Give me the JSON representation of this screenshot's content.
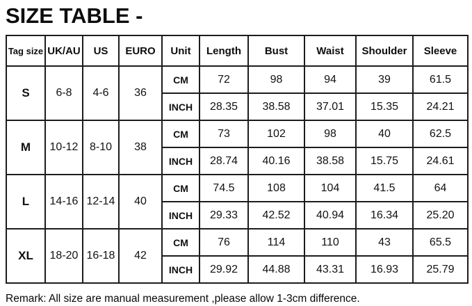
{
  "title": "SIZE TABLE -",
  "remark": "Remark: All size are manual measurement ,please allow 1-3cm difference.",
  "colors": {
    "background": "#ffffff",
    "text": "#0d0d0d",
    "border": "#1c1c1c"
  },
  "table": {
    "headers": [
      "Tag size",
      "UK/AU",
      "US",
      "EURO",
      "Unit",
      "Length",
      "Bust",
      "Waist",
      "Shoulder",
      "Sleeve"
    ],
    "unit_labels": [
      "CM",
      "INCH"
    ],
    "rows": [
      {
        "tag": "S",
        "uk_au": "6-8",
        "us": "4-6",
        "euro": "36",
        "cm": [
          "72",
          "98",
          "94",
          "39",
          "61.5"
        ],
        "inch": [
          "28.35",
          "38.58",
          "37.01",
          "15.35",
          "24.21"
        ]
      },
      {
        "tag": "M",
        "uk_au": "10-12",
        "us": "8-10",
        "euro": "38",
        "cm": [
          "73",
          "102",
          "98",
          "40",
          "62.5"
        ],
        "inch": [
          "28.74",
          "40.16",
          "38.58",
          "15.75",
          "24.61"
        ]
      },
      {
        "tag": "L",
        "uk_au": "14-16",
        "us": "12-14",
        "euro": "40",
        "cm": [
          "74.5",
          "108",
          "104",
          "41.5",
          "64"
        ],
        "inch": [
          "29.33",
          "42.52",
          "40.94",
          "16.34",
          "25.20"
        ]
      },
      {
        "tag": "XL",
        "uk_au": "18-20",
        "us": "16-18",
        "euro": "42",
        "cm": [
          "76",
          "114",
          "110",
          "43",
          "65.5"
        ],
        "inch": [
          "29.92",
          "44.88",
          "43.31",
          "16.93",
          "25.79"
        ]
      }
    ]
  },
  "chart_data": {
    "type": "table",
    "title": "SIZE TABLE -",
    "columns": [
      "Tag size",
      "UK/AU",
      "US",
      "EURO",
      "Unit",
      "Length",
      "Bust",
      "Waist",
      "Shoulder",
      "Sleeve"
    ],
    "rows": [
      [
        "S",
        "6-8",
        "4-6",
        "36",
        "CM",
        72,
        98,
        94,
        39,
        61.5
      ],
      [
        "S",
        "6-8",
        "4-6",
        "36",
        "INCH",
        28.35,
        38.58,
        37.01,
        15.35,
        24.21
      ],
      [
        "M",
        "10-12",
        "8-10",
        "38",
        "CM",
        73,
        102,
        98,
        40,
        62.5
      ],
      [
        "M",
        "10-12",
        "8-10",
        "38",
        "INCH",
        28.74,
        40.16,
        38.58,
        15.75,
        24.61
      ],
      [
        "L",
        "14-16",
        "12-14",
        "40",
        "CM",
        74.5,
        108,
        104,
        41.5,
        64
      ],
      [
        "L",
        "14-16",
        "12-14",
        "40",
        "INCH",
        29.33,
        42.52,
        40.94,
        16.34,
        25.2
      ],
      [
        "XL",
        "18-20",
        "16-18",
        "42",
        "CM",
        76,
        114,
        110,
        43,
        65.5
      ],
      [
        "XL",
        "18-20",
        "16-18",
        "42",
        "INCH",
        29.92,
        44.88,
        43.31,
        16.93,
        25.79
      ]
    ],
    "note": "Remark: All size are manual measurement ,please allow 1-3cm difference."
  }
}
